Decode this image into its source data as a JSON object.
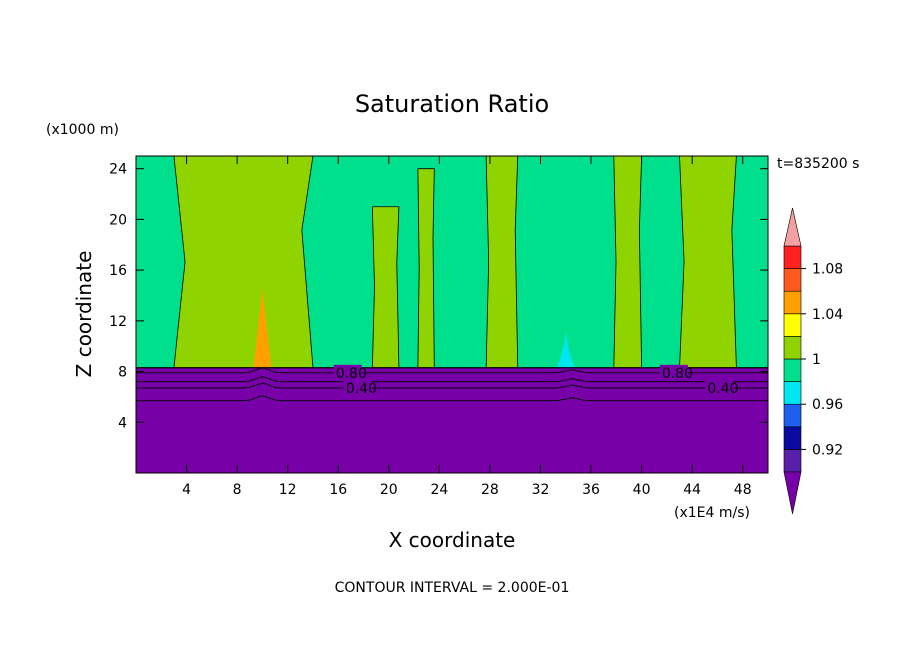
{
  "chart_data": {
    "type": "heatmap",
    "title": "Saturation Ratio",
    "xlabel": "X coordinate",
    "ylabel": "Z coordinate",
    "x_unit": "(x1E4 m/s)",
    "y_unit": "(x1000 m)",
    "time_label": "t=835200 s",
    "footer": "CONTOUR INTERVAL = 2.000E-01",
    "xlim": [
      0,
      50
    ],
    "ylim": [
      0,
      25
    ],
    "x_ticks": [
      4,
      8,
      12,
      16,
      20,
      24,
      28,
      32,
      36,
      40,
      44,
      48
    ],
    "y_ticks": [
      4,
      8,
      12,
      16,
      20,
      24
    ],
    "colorbar": {
      "boundaries": [
        0.9,
        0.92,
        0.94,
        0.96,
        0.98,
        1.0,
        1.02,
        1.04,
        1.06,
        1.08,
        1.1
      ],
      "colors": [
        "#5a1fa8",
        "#0a0aa0",
        "#1e5ff0",
        "#00e6f0",
        "#00e08c",
        "#8fd400",
        "#ffff00",
        "#ffa000",
        "#ff5a1e",
        "#ff2020"
      ],
      "under_color": "#7800a8",
      "over_color": "#f5a0a0",
      "tick_labels": [
        "0.92",
        "0.96",
        "1",
        "1.04",
        "1.08"
      ],
      "tick_values": [
        0.92,
        0.96,
        1.0,
        1.04,
        1.08
      ]
    },
    "field": {
      "background_value_above_8km": 0.99,
      "value_below_8km": 0.2,
      "boundary_height": 8.3,
      "supersaturated_columns": [
        {
          "x_start": 3.0,
          "x_end": 14.0,
          "z_top": 25,
          "value": 1.01
        },
        {
          "x_start": 18.7,
          "x_end": 20.8,
          "z_top": 21,
          "value": 1.01
        },
        {
          "x_start": 22.3,
          "x_end": 23.6,
          "z_top": 24,
          "value": 1.01
        },
        {
          "x_start": 27.7,
          "x_end": 30.2,
          "z_top": 25,
          "value": 1.01
        },
        {
          "x_start": 37.8,
          "x_end": 40.0,
          "z_top": 25,
          "value": 1.01
        },
        {
          "x_start": 43.0,
          "x_end": 47.5,
          "z_top": 25,
          "value": 1.01
        }
      ],
      "peaks": [
        {
          "x": 10.0,
          "z_top": 14.6,
          "value": 1.05
        },
        {
          "x": 34.0,
          "z_top": 11.2,
          "value": 0.97
        }
      ]
    },
    "contour_lines": [
      {
        "value": 0.8,
        "label": "0.80",
        "z": 7.9,
        "label_x": [
          15.8,
          41.6
        ]
      },
      {
        "value": 0.6,
        "label": "",
        "z": 7.2,
        "label_x": []
      },
      {
        "value": 0.4,
        "label": "0.40",
        "z": 6.7,
        "label_x": [
          16.6,
          45.2
        ]
      },
      {
        "value": 0.2,
        "label": "",
        "z": 5.7,
        "label_x": []
      }
    ]
  }
}
